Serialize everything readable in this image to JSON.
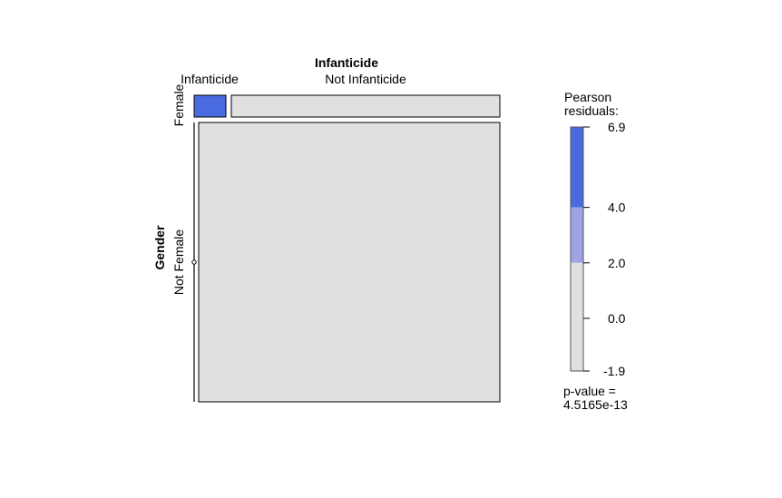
{
  "chart_data": {
    "type": "mosaic",
    "column_variable": "Infanticide",
    "row_variable": "Gender",
    "column_levels": [
      "Infanticide",
      "Not Infanticide"
    ],
    "row_levels": [
      "Female",
      "Not Female"
    ],
    "column_proportions": [
      0.1,
      0.9
    ],
    "row_proportions": [
      0.08,
      0.92
    ],
    "cells": [
      {
        "row": "Female",
        "col": "Infanticide",
        "residual_band": "high"
      },
      {
        "row": "Female",
        "col": "Not Infanticide",
        "residual_band": "neutral"
      },
      {
        "row": "Not Female",
        "col": "Infanticide",
        "residual_band": "neutral"
      },
      {
        "row": "Not Female",
        "col": "Not Infanticide",
        "residual_band": "neutral"
      }
    ],
    "legend": {
      "title_lines": [
        "Pearson",
        "residuals:"
      ],
      "ticks": [
        "6.9",
        "4.0",
        "2.0",
        "0.0",
        "-1.9"
      ],
      "tick_values": [
        6.9,
        4.0,
        2.0,
        0.0,
        -1.9
      ],
      "range": [
        -1.9,
        6.9
      ],
      "bands": [
        {
          "from": 4.0,
          "to": 6.9,
          "color": "#4A6BE0"
        },
        {
          "from": 2.0,
          "to": 4.0,
          "color": "#9EA3E3"
        },
        {
          "from": -1.9,
          "to": 2.0,
          "color": "#E0E0E0"
        }
      ],
      "placement": "right"
    },
    "pvalue_lines": [
      "p-value =",
      "4.5165e-13"
    ]
  },
  "colors": {
    "high": "#4A6BE0",
    "mid": "#9EA3E3",
    "neutral": "#E0E0E0",
    "stroke": "#000000"
  }
}
